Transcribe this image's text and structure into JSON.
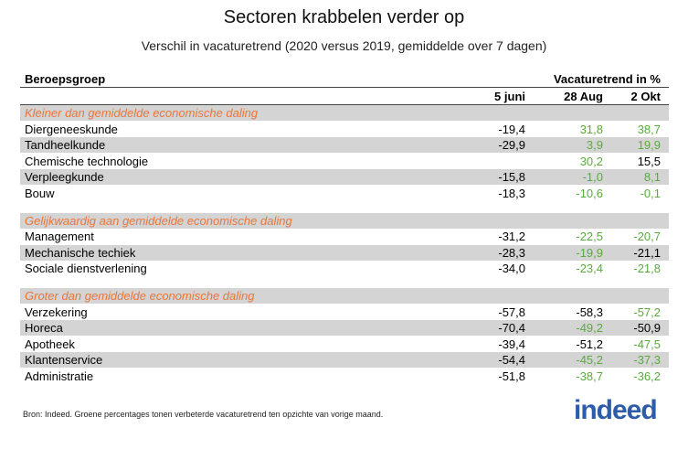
{
  "chart_data": {
    "type": "table",
    "title": "Sectoren krabbelen verder op",
    "subtitle": "Verschil in vacaturetrend (2020 versus 2019, gemiddelde over 7 dagen)",
    "row_header": "Beroepsgroep",
    "value_header": "Vacaturetrend in %",
    "columns": [
      "5 juni",
      "28 Aug",
      "2 Okt"
    ],
    "sections": [
      {
        "name": "Kleiner dan gemiddelde economische daling",
        "rows": [
          {
            "label": "Diergeneeskunde",
            "values": [
              "-19,4",
              "31,8",
              "38,7"
            ],
            "green": [
              false,
              true,
              true
            ]
          },
          {
            "label": "Tandheelkunde",
            "values": [
              "-29,9",
              "3,9",
              "19,9"
            ],
            "green": [
              false,
              true,
              true
            ]
          },
          {
            "label": "Chemische technologie",
            "values": [
              "",
              "30,2",
              "15,5"
            ],
            "green": [
              false,
              true,
              false
            ]
          },
          {
            "label": "Verpleegkunde",
            "values": [
              "-15,8",
              "-1,0",
              "8,1"
            ],
            "green": [
              false,
              true,
              true
            ]
          },
          {
            "label": "Bouw",
            "values": [
              "-18,3",
              "-10,6",
              "-0,1"
            ],
            "green": [
              false,
              true,
              true
            ]
          }
        ]
      },
      {
        "name": "Gelijkwaardig aan gemiddelde economische daling",
        "rows": [
          {
            "label": "Management",
            "values": [
              "-31,2",
              "-22,5",
              "-20,7"
            ],
            "green": [
              false,
              true,
              true
            ]
          },
          {
            "label": "Mechanische techiek",
            "values": [
              "-28,3",
              "-19,9",
              "-21,1"
            ],
            "green": [
              false,
              true,
              false
            ]
          },
          {
            "label": "Sociale dienstverlening",
            "values": [
              "-34,0",
              "-23,4",
              "-21,8"
            ],
            "green": [
              false,
              true,
              true
            ]
          }
        ]
      },
      {
        "name": "Groter dan gemiddelde economische daling",
        "rows": [
          {
            "label": "Verzekering",
            "values": [
              "-57,8",
              "-58,3",
              "-57,2"
            ],
            "green": [
              false,
              false,
              true
            ]
          },
          {
            "label": "Horeca",
            "values": [
              "-70,4",
              "-49,2",
              "-50,9"
            ],
            "green": [
              false,
              true,
              false
            ]
          },
          {
            "label": "Apotheek",
            "values": [
              "-39,4",
              "-51,2",
              "-47,5"
            ],
            "green": [
              false,
              false,
              true
            ]
          },
          {
            "label": "Klantenservice",
            "values": [
              "-54,4",
              "-45,2",
              "-37,3"
            ],
            "green": [
              false,
              true,
              true
            ]
          },
          {
            "label": "Administratie",
            "values": [
              "-51,8",
              "-38,7",
              "-36,2"
            ],
            "green": [
              false,
              true,
              true
            ]
          }
        ]
      }
    ],
    "colors": {
      "section": "#e8763b",
      "green": "#5aab3e",
      "shade": "#d4d4d4"
    }
  },
  "footnote": "Bron: Indeed. Groene percentages tonen verbeterde vacaturetrend ten opzichte van vorige maand.",
  "logo_text": "indeed"
}
